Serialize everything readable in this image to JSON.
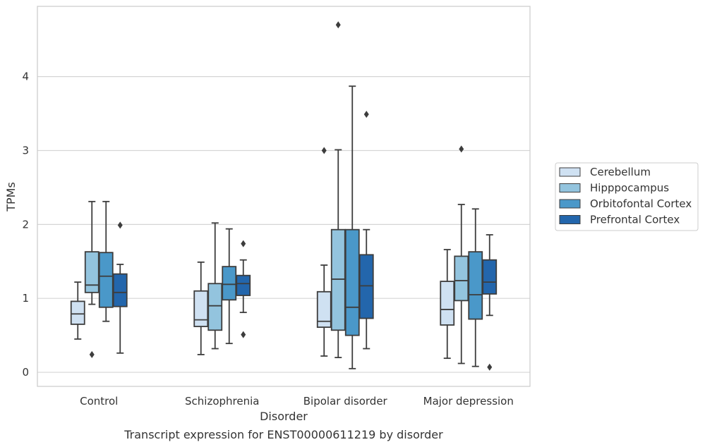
{
  "chart_data": {
    "type": "box",
    "title": "Transcript expression for ENST00000611219 by disorder",
    "xlabel": "Disorder",
    "ylabel": "TPMs",
    "ylim": [
      -0.19,
      4.95
    ],
    "yticks": [
      0,
      1,
      2,
      3,
      4
    ],
    "grid": "horizontal",
    "legend_position": "right",
    "categories": [
      "Control",
      "Schizophrenia",
      "Bipolar disorder",
      "Major depression"
    ],
    "series": [
      {
        "name": "Cerebellum",
        "color": "#cfe1f2",
        "boxes": [
          {
            "whislo": 0.45,
            "q1": 0.65,
            "med": 0.79,
            "q3": 0.96,
            "whishi": 1.22,
            "fliers": []
          },
          {
            "whislo": 0.24,
            "q1": 0.62,
            "med": 0.71,
            "q3": 1.1,
            "whishi": 1.49,
            "fliers": []
          },
          {
            "whislo": 0.22,
            "q1": 0.61,
            "med": 0.69,
            "q3": 1.09,
            "whishi": 1.45,
            "fliers": [
              3.0
            ]
          },
          {
            "whislo": 0.19,
            "q1": 0.64,
            "med": 0.85,
            "q3": 1.23,
            "whishi": 1.66,
            "fliers": []
          }
        ]
      },
      {
        "name": "Hipppocampus",
        "color": "#93c4de",
        "boxes": [
          {
            "whislo": 0.92,
            "q1": 1.08,
            "med": 1.18,
            "q3": 1.63,
            "whishi": 2.31,
            "fliers": [
              0.24
            ]
          },
          {
            "whislo": 0.32,
            "q1": 0.57,
            "med": 0.9,
            "q3": 1.2,
            "whishi": 2.02,
            "fliers": []
          },
          {
            "whislo": 0.2,
            "q1": 0.57,
            "med": 1.26,
            "q3": 1.93,
            "whishi": 3.01,
            "fliers": [
              4.7
            ]
          },
          {
            "whislo": 0.12,
            "q1": 0.97,
            "med": 1.24,
            "q3": 1.57,
            "whishi": 2.27,
            "fliers": [
              3.02
            ]
          }
        ]
      },
      {
        "name": "Orbitofontal Cortex",
        "color": "#4a98c9",
        "boxes": [
          {
            "whislo": 0.69,
            "q1": 0.88,
            "med": 1.3,
            "q3": 1.62,
            "whishi": 2.31,
            "fliers": []
          },
          {
            "whislo": 0.39,
            "q1": 0.98,
            "med": 1.19,
            "q3": 1.43,
            "whishi": 1.94,
            "fliers": []
          },
          {
            "whislo": 0.05,
            "q1": 0.5,
            "med": 0.88,
            "q3": 1.93,
            "whishi": 3.87,
            "fliers": []
          },
          {
            "whislo": 0.08,
            "q1": 0.72,
            "med": 1.05,
            "q3": 1.63,
            "whishi": 2.21,
            "fliers": []
          }
        ]
      },
      {
        "name": "Prefrontal Cortex",
        "color": "#2366ac",
        "boxes": [
          {
            "whislo": 0.26,
            "q1": 0.89,
            "med": 1.08,
            "q3": 1.33,
            "whishi": 1.46,
            "fliers": [
              1.99
            ]
          },
          {
            "whislo": 0.81,
            "q1": 1.04,
            "med": 1.2,
            "q3": 1.31,
            "whishi": 1.52,
            "fliers": [
              1.74,
              0.51
            ]
          },
          {
            "whislo": 0.32,
            "q1": 0.73,
            "med": 1.17,
            "q3": 1.59,
            "whishi": 1.93,
            "fliers": [
              3.49
            ]
          },
          {
            "whislo": 0.77,
            "q1": 1.06,
            "med": 1.22,
            "q3": 1.52,
            "whishi": 1.86,
            "fliers": [
              0.07
            ]
          }
        ]
      }
    ]
  }
}
